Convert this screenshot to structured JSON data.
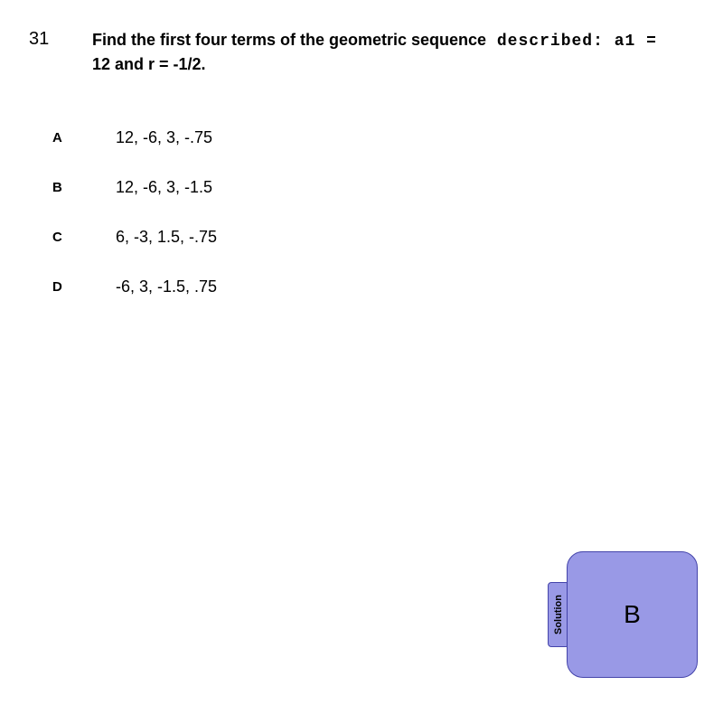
{
  "question": {
    "number": "31",
    "text_part1": "Find the first four terms of the geometric sequence",
    "text_described": " described: a1 =",
    "text_line2": "12 and r = -1/2."
  },
  "options": [
    {
      "letter": "A",
      "text": "12, -6, 3, -.75"
    },
    {
      "letter": "B",
      "text": "12, -6, 3, -1.5"
    },
    {
      "letter": "C",
      "text": "6, -3, 1.5, -.75"
    },
    {
      "letter": "D",
      "text": "-6, 3, -1.5, .75"
    }
  ],
  "solution": {
    "tab_label": "Solution",
    "answer": "B"
  },
  "colors": {
    "background": "#ffffff",
    "text": "#000000",
    "solution_fill": "#9999e6",
    "solution_border": "#4444aa"
  }
}
